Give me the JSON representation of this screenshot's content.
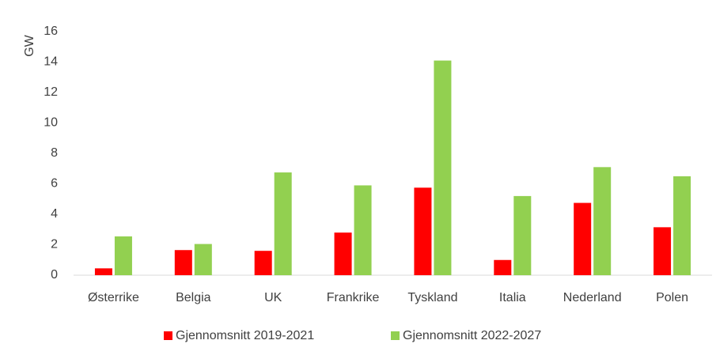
{
  "chart_data": {
    "type": "bar",
    "y_label": "GW",
    "categories": [
      "Østerrike",
      "Belgia",
      "UK",
      "Frankrike",
      "Tyskland",
      "Italia",
      "Nederland",
      "Polen"
    ],
    "series": [
      {
        "name": "Gjennomsnitt 2019-2021",
        "color": "#ff0000",
        "values": [
          0.45,
          1.65,
          1.6,
          2.8,
          5.75,
          1.0,
          4.75,
          3.15
        ]
      },
      {
        "name": "Gjennomsnitt 2022-2027",
        "color": "#92d050",
        "values": [
          2.55,
          2.05,
          6.75,
          5.9,
          14.1,
          5.2,
          7.1,
          6.5
        ]
      }
    ],
    "ylim": [
      0,
      16
    ],
    "yticks": [
      0,
      2,
      4,
      6,
      8,
      10,
      12,
      14,
      16
    ],
    "grid": false,
    "legend": "bottom"
  }
}
